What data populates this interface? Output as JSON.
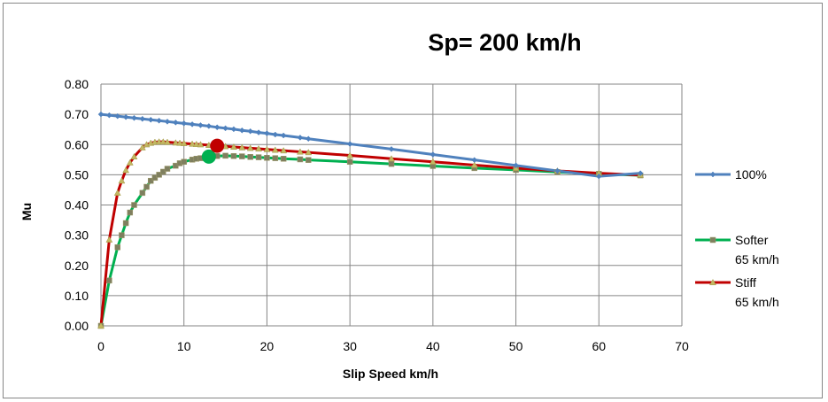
{
  "chart_data": {
    "type": "scatter",
    "title": "Sp= 200 km/h",
    "xlabel": "Slip Speed km/h",
    "ylabel": "Mu",
    "xlim": [
      0,
      70
    ],
    "ylim": [
      0,
      0.8
    ],
    "xticks": [
      0,
      10,
      20,
      30,
      40,
      50,
      60,
      70
    ],
    "xtick_labels": [
      "0",
      "10",
      "20",
      "30",
      "40",
      "50",
      "60",
      "70"
    ],
    "yticks": [
      0,
      0.1,
      0.2,
      0.3,
      0.4,
      0.5,
      0.6,
      0.7,
      0.8
    ],
    "ytick_labels": [
      "0.00",
      "0.10",
      "0.20",
      "0.30",
      "0.40",
      "0.50",
      "0.60",
      "0.70",
      "0.80"
    ],
    "grid": true,
    "legend_position": "right",
    "series": [
      {
        "name": "100%",
        "color": "#4F81BD",
        "marker": "diamond",
        "x": [
          0,
          1,
          2,
          3,
          4,
          5,
          6,
          7,
          8,
          9,
          10,
          11,
          12,
          13,
          14,
          15,
          16,
          17,
          18,
          19,
          20,
          21,
          22,
          24,
          25,
          30,
          35,
          40,
          45,
          50,
          55,
          60,
          65
        ],
        "y": [
          0.7,
          0.697,
          0.694,
          0.691,
          0.688,
          0.685,
          0.682,
          0.679,
          0.676,
          0.673,
          0.67,
          0.667,
          0.664,
          0.661,
          0.657,
          0.654,
          0.651,
          0.647,
          0.644,
          0.64,
          0.637,
          0.633,
          0.63,
          0.623,
          0.619,
          0.602,
          0.585,
          0.567,
          0.549,
          0.531,
          0.513,
          0.495,
          0.505
        ]
      },
      {
        "name": "Softer",
        "legend_label_line2": "65 km/h",
        "color": "#00B050",
        "marker": "square",
        "x": [
          0,
          1,
          2,
          2.5,
          3,
          3.5,
          4,
          5,
          5.5,
          6,
          6.5,
          7,
          7.5,
          8,
          9,
          9.5,
          10,
          11,
          11.5,
          12,
          13,
          14,
          15,
          16,
          17,
          18,
          19,
          20,
          21,
          22,
          24,
          25,
          30,
          35,
          40,
          45,
          50,
          55,
          60,
          65
        ],
        "y": [
          0.0,
          0.15,
          0.26,
          0.3,
          0.34,
          0.375,
          0.4,
          0.44,
          0.46,
          0.48,
          0.49,
          0.5,
          0.51,
          0.52,
          0.53,
          0.538,
          0.543,
          0.55,
          0.553,
          0.555,
          0.56,
          0.562,
          0.563,
          0.562,
          0.561,
          0.559,
          0.558,
          0.556,
          0.555,
          0.553,
          0.551,
          0.549,
          0.543,
          0.536,
          0.529,
          0.522,
          0.516,
          0.509,
          0.503,
          0.498
        ]
      },
      {
        "name": "Stiff",
        "legend_label_line2": "65 km/h",
        "color": "#C00000",
        "marker": "triangle",
        "x": [
          0,
          1,
          2,
          2.5,
          3,
          3.5,
          4,
          5,
          5.5,
          6,
          6.5,
          7,
          7.5,
          8,
          9,
          9.5,
          10,
          11,
          11.5,
          12,
          13,
          14,
          15,
          16,
          17,
          18,
          19,
          20,
          21,
          22,
          24,
          25,
          30,
          35,
          40,
          45,
          50,
          55,
          60,
          65
        ],
        "y": [
          0.0,
          0.285,
          0.44,
          0.48,
          0.515,
          0.54,
          0.56,
          0.59,
          0.6,
          0.605,
          0.608,
          0.609,
          0.609,
          0.608,
          0.606,
          0.605,
          0.604,
          0.602,
          0.601,
          0.6,
          0.598,
          0.596,
          0.594,
          0.592,
          0.59,
          0.588,
          0.586,
          0.584,
          0.582,
          0.58,
          0.576,
          0.574,
          0.564,
          0.553,
          0.543,
          0.532,
          0.522,
          0.513,
          0.505,
          0.499
        ]
      }
    ],
    "highlights": [
      {
        "series": "Softer",
        "x": 13,
        "y": 0.56,
        "color": "#00B050"
      },
      {
        "series": "Stiff",
        "x": 14,
        "y": 0.596,
        "color": "#C00000"
      }
    ],
    "marker_fill": "#C3B762"
  }
}
